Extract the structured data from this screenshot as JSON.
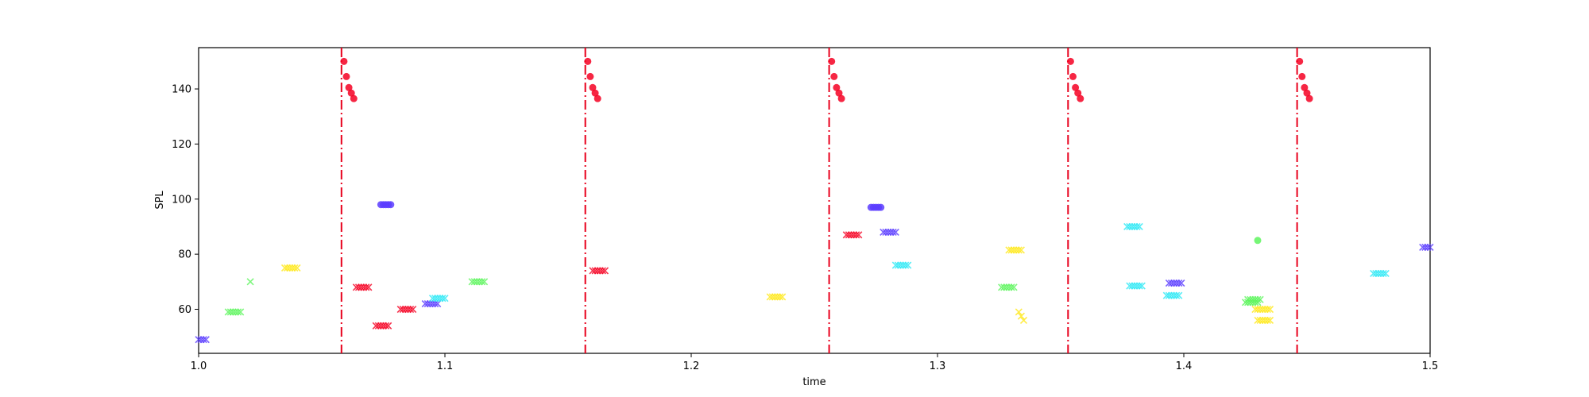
{
  "chart_data": {
    "type": "scatter",
    "title": "",
    "xlabel": "time",
    "ylabel": "SPL",
    "xlim": [
      1.0,
      1.5
    ],
    "ylim": [
      44,
      155
    ],
    "xticks": [
      1.0,
      1.1,
      1.2,
      1.3,
      1.4,
      1.5
    ],
    "xtick_labels": [
      "1.0",
      "1.1",
      "1.2",
      "1.3",
      "1.4",
      "1.5"
    ],
    "yticks": [
      60,
      80,
      100,
      120,
      140
    ],
    "ytick_labels": [
      "60",
      "80",
      "100",
      "120",
      "140"
    ],
    "grid": false,
    "legend": "none",
    "vlines": {
      "color": "#e8001c",
      "style": "dashdot",
      "x": [
        1.058,
        1.157,
        1.256,
        1.353,
        1.446
      ]
    },
    "series": [
      {
        "marker": "circle",
        "color": "#f50022",
        "points": [
          [
            1.059,
            150
          ],
          [
            1.06,
            144.5
          ],
          [
            1.061,
            140.5
          ],
          [
            1.062,
            138.5
          ],
          [
            1.063,
            136.5
          ],
          [
            1.158,
            150
          ],
          [
            1.159,
            144.5
          ],
          [
            1.16,
            140.5
          ],
          [
            1.161,
            138.5
          ],
          [
            1.162,
            136.5
          ],
          [
            1.257,
            150
          ],
          [
            1.258,
            144.5
          ],
          [
            1.259,
            140.5
          ],
          [
            1.26,
            138.5
          ],
          [
            1.261,
            136.5
          ],
          [
            1.354,
            150
          ],
          [
            1.355,
            144.5
          ],
          [
            1.356,
            140.5
          ],
          [
            1.357,
            138.5
          ],
          [
            1.358,
            136.5
          ],
          [
            1.447,
            150
          ],
          [
            1.448,
            144.5
          ],
          [
            1.449,
            140.5
          ],
          [
            1.45,
            138.5
          ],
          [
            1.451,
            136.5
          ]
        ]
      },
      {
        "marker": "circle",
        "color": "#5a3cff",
        "points": [
          [
            1.074,
            98
          ],
          [
            1.075,
            98
          ],
          [
            1.076,
            98
          ],
          [
            1.077,
            98
          ],
          [
            1.078,
            98
          ],
          [
            1.273,
            97
          ],
          [
            1.274,
            97
          ],
          [
            1.275,
            97
          ],
          [
            1.276,
            97
          ],
          [
            1.277,
            97
          ]
        ]
      },
      {
        "marker": "circle",
        "color": "#5ef55e",
        "points": [
          [
            1.43,
            85
          ]
        ]
      },
      {
        "marker": "x",
        "color": "#f50022",
        "points": [
          [
            1.064,
            68
          ],
          [
            1.065,
            68
          ],
          [
            1.066,
            68
          ],
          [
            1.067,
            68
          ],
          [
            1.068,
            68
          ],
          [
            1.069,
            68
          ],
          [
            1.072,
            54
          ],
          [
            1.073,
            54
          ],
          [
            1.074,
            54
          ],
          [
            1.075,
            54
          ],
          [
            1.076,
            54
          ],
          [
            1.077,
            54
          ],
          [
            1.082,
            60
          ],
          [
            1.083,
            60
          ],
          [
            1.084,
            60
          ],
          [
            1.085,
            60
          ],
          [
            1.086,
            60
          ],
          [
            1.087,
            60
          ],
          [
            1.16,
            74
          ],
          [
            1.161,
            74
          ],
          [
            1.162,
            74
          ],
          [
            1.163,
            74
          ],
          [
            1.164,
            74
          ],
          [
            1.165,
            74
          ],
          [
            1.263,
            87
          ],
          [
            1.264,
            87
          ],
          [
            1.265,
            87
          ],
          [
            1.266,
            87
          ],
          [
            1.267,
            87
          ],
          [
            1.268,
            87
          ]
        ]
      },
      {
        "marker": "x",
        "color": "#5a3cff",
        "points": [
          [
            1.0,
            49
          ],
          [
            1.001,
            49
          ],
          [
            1.002,
            49
          ],
          [
            1.003,
            49
          ],
          [
            1.092,
            62
          ],
          [
            1.093,
            62
          ],
          [
            1.094,
            62
          ],
          [
            1.095,
            62
          ],
          [
            1.096,
            62
          ],
          [
            1.097,
            62
          ],
          [
            1.278,
            88
          ],
          [
            1.279,
            88
          ],
          [
            1.28,
            88
          ],
          [
            1.281,
            88
          ],
          [
            1.282,
            88
          ],
          [
            1.283,
            88
          ],
          [
            1.394,
            69.5
          ],
          [
            1.395,
            69.5
          ],
          [
            1.396,
            69.5
          ],
          [
            1.397,
            69.5
          ],
          [
            1.398,
            69.5
          ],
          [
            1.399,
            69.5
          ],
          [
            1.497,
            82.5
          ],
          [
            1.498,
            82.5
          ],
          [
            1.499,
            82.5
          ],
          [
            1.5,
            82.5
          ]
        ]
      },
      {
        "marker": "x",
        "color": "#2ee8f5",
        "points": [
          [
            1.095,
            64
          ],
          [
            1.096,
            64
          ],
          [
            1.097,
            64
          ],
          [
            1.098,
            64
          ],
          [
            1.099,
            64
          ],
          [
            1.1,
            64
          ],
          [
            1.283,
            76
          ],
          [
            1.284,
            76
          ],
          [
            1.285,
            76
          ],
          [
            1.286,
            76
          ],
          [
            1.287,
            76
          ],
          [
            1.288,
            76
          ],
          [
            1.377,
            90
          ],
          [
            1.378,
            90
          ],
          [
            1.379,
            90
          ],
          [
            1.38,
            90
          ],
          [
            1.381,
            90
          ],
          [
            1.382,
            90
          ],
          [
            1.378,
            68.5
          ],
          [
            1.379,
            68.5
          ],
          [
            1.38,
            68.5
          ],
          [
            1.381,
            68.5
          ],
          [
            1.382,
            68.5
          ],
          [
            1.383,
            68.5
          ],
          [
            1.393,
            65
          ],
          [
            1.394,
            65
          ],
          [
            1.395,
            65
          ],
          [
            1.396,
            65
          ],
          [
            1.397,
            65
          ],
          [
            1.398,
            65
          ],
          [
            1.477,
            73
          ],
          [
            1.478,
            73
          ],
          [
            1.479,
            73
          ],
          [
            1.48,
            73
          ],
          [
            1.481,
            73
          ],
          [
            1.482,
            73
          ]
        ]
      },
      {
        "marker": "x",
        "color": "#5ef55e",
        "points": [
          [
            1.012,
            59
          ],
          [
            1.013,
            59
          ],
          [
            1.014,
            59
          ],
          [
            1.015,
            59
          ],
          [
            1.016,
            59
          ],
          [
            1.017,
            59
          ],
          [
            1.021,
            70
          ],
          [
            1.111,
            70
          ],
          [
            1.112,
            70
          ],
          [
            1.113,
            70
          ],
          [
            1.114,
            70
          ],
          [
            1.115,
            70
          ],
          [
            1.116,
            70
          ],
          [
            1.326,
            68
          ],
          [
            1.327,
            68
          ],
          [
            1.328,
            68
          ],
          [
            1.329,
            68
          ],
          [
            1.33,
            68
          ],
          [
            1.331,
            68
          ],
          [
            1.425,
            62.5
          ],
          [
            1.426,
            62.5
          ],
          [
            1.427,
            62.5
          ],
          [
            1.428,
            62.5
          ],
          [
            1.429,
            62.5
          ],
          [
            1.43,
            62.5
          ],
          [
            1.426,
            63.5
          ],
          [
            1.427,
            63.5
          ],
          [
            1.428,
            63.5
          ],
          [
            1.429,
            63.5
          ],
          [
            1.43,
            63.5
          ],
          [
            1.431,
            63.5
          ]
        ]
      },
      {
        "marker": "x",
        "color": "#ffe81a",
        "points": [
          [
            1.035,
            75
          ],
          [
            1.036,
            75
          ],
          [
            1.037,
            75
          ],
          [
            1.038,
            75
          ],
          [
            1.039,
            75
          ],
          [
            1.04,
            75
          ],
          [
            1.232,
            64.5
          ],
          [
            1.233,
            64.5
          ],
          [
            1.234,
            64.5
          ],
          [
            1.235,
            64.5
          ],
          [
            1.236,
            64.5
          ],
          [
            1.237,
            64.5
          ],
          [
            1.329,
            81.5
          ],
          [
            1.33,
            81.5
          ],
          [
            1.331,
            81.5
          ],
          [
            1.332,
            81.5
          ],
          [
            1.333,
            81.5
          ],
          [
            1.334,
            81.5
          ],
          [
            1.333,
            59
          ],
          [
            1.334,
            57.5
          ],
          [
            1.335,
            56
          ],
          [
            1.429,
            60
          ],
          [
            1.43,
            60
          ],
          [
            1.431,
            60
          ],
          [
            1.432,
            60
          ],
          [
            1.433,
            60
          ],
          [
            1.434,
            60
          ],
          [
            1.435,
            60
          ],
          [
            1.43,
            56
          ],
          [
            1.431,
            56
          ],
          [
            1.432,
            56
          ],
          [
            1.433,
            56
          ],
          [
            1.434,
            56
          ],
          [
            1.435,
            56
          ]
        ]
      }
    ]
  }
}
